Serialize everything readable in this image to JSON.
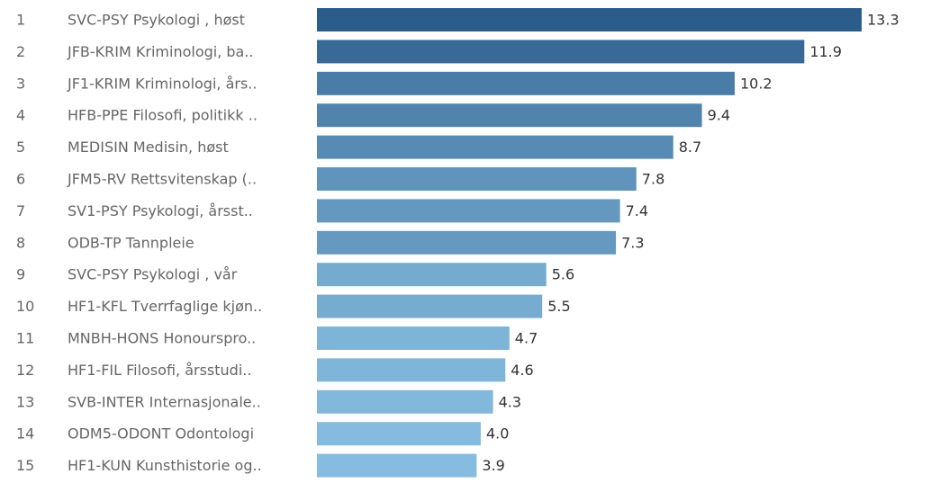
{
  "chart_data": {
    "type": "bar",
    "ranks": [
      "1",
      "2",
      "3",
      "4",
      "5",
      "6",
      "7",
      "8",
      "9",
      "10",
      "11",
      "12",
      "13",
      "14",
      "15"
    ],
    "categories": [
      "SVC-PSY Psykologi , høst",
      "JFB-KRIM Kriminologi, ba..",
      "JF1-KRIM Kriminologi, års..",
      "HFB-PPE Filosofi, politikk ..",
      "MEDISIN Medisin, høst",
      "JFM5-RV Rettsvitenskap (..",
      "SV1-PSY Psykologi, årsst..",
      "ODB-TP Tannpleie",
      "SVC-PSY Psykologi , vår",
      "HF1-KFL Tverrfaglige kjøn..",
      "MNBH-HONS Honourspro..",
      "HF1-FIL Filosofi, årsstudi..",
      "SVB-INTER Internasjonale..",
      "ODM5-ODONT Odontologi",
      "HF1-KUN Kunsthistorie og.."
    ],
    "values": [
      13.3,
      11.9,
      10.2,
      9.4,
      8.7,
      7.8,
      7.4,
      7.3,
      5.6,
      5.5,
      4.7,
      4.6,
      4.3,
      4.0,
      3.9
    ],
    "value_labels": [
      "13.3",
      "11.9",
      "10.2",
      "9.4",
      "8.7",
      "7.8",
      "7.4",
      "7.3",
      "5.6",
      "5.5",
      "4.7",
      "4.6",
      "4.3",
      "4.0",
      "3.9"
    ],
    "color_range": [
      "#86bcdf",
      "#2b5c8a"
    ]
  }
}
